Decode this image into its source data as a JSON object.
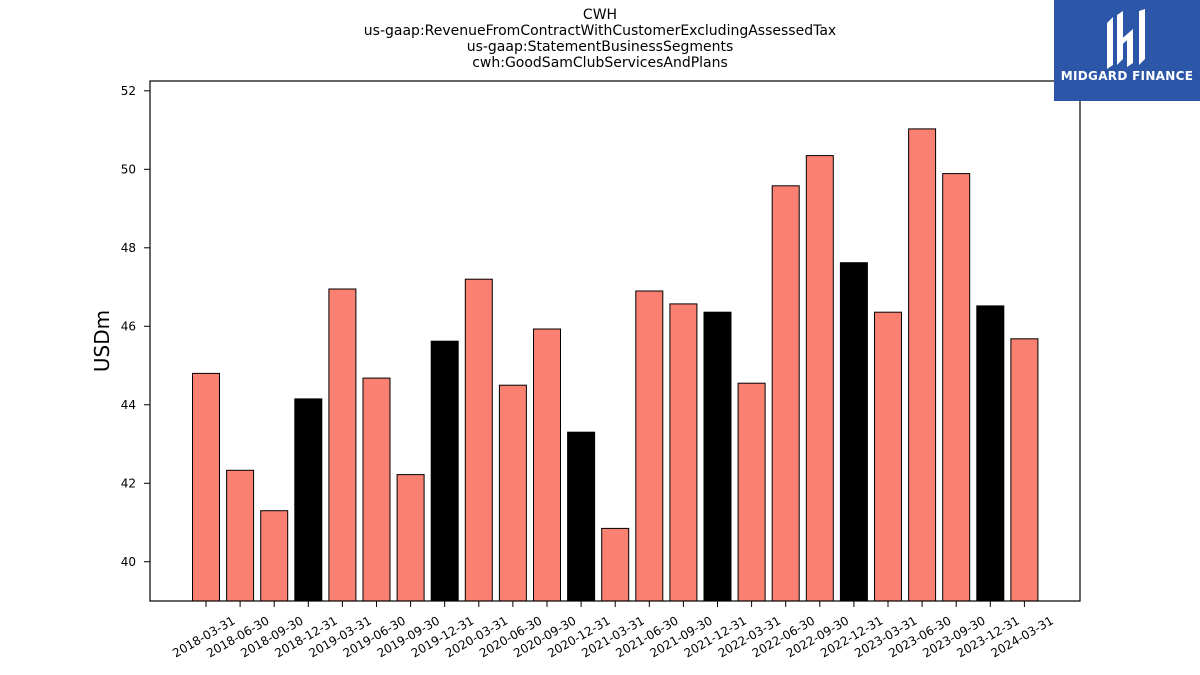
{
  "title_lines": [
    "CWH",
    "us-gaap:RevenueFromContractWithCustomerExcludingAssessedTax",
    "us-gaap:StatementBusinessSegments",
    "cwh:GoodSamClubServicesAndPlans"
  ],
  "logo": {
    "text": "MIDGARD FINANCE",
    "icon": "midgard-logo-icon",
    "bg": "#2c56a8"
  },
  "chart_data": {
    "type": "bar",
    "title": "CWH us-gaap:RevenueFromContractWithCustomerExcludingAssessedTax us-gaap:StatementBusinessSegments cwh:GoodSamClubServicesAndPlans",
    "xlabel": "",
    "ylabel": "USDm",
    "ylim": [
      39,
      52.25
    ],
    "yticks": [
      40,
      42,
      44,
      46,
      48,
      50,
      52
    ],
    "grid": false,
    "colors": {
      "default": "#fa8072",
      "highlight": "#000000",
      "edge": "#000000"
    },
    "categories": [
      "2018-03-31",
      "2018-06-30",
      "2018-09-30",
      "2018-12-31",
      "2019-03-31",
      "2019-06-30",
      "2019-09-30",
      "2019-12-31",
      "2020-03-31",
      "2020-06-30",
      "2020-09-30",
      "2020-12-31",
      "2021-03-31",
      "2021-06-30",
      "2021-09-30",
      "2021-12-31",
      "2022-03-31",
      "2022-06-30",
      "2022-09-30",
      "2022-12-31",
      "2023-03-31",
      "2023-06-30",
      "2023-09-30",
      "2023-12-31",
      "2024-03-31"
    ],
    "values": [
      44.8,
      42.33,
      41.3,
      44.15,
      46.95,
      44.68,
      42.22,
      45.62,
      47.2,
      44.5,
      45.93,
      43.3,
      40.85,
      46.9,
      46.57,
      46.36,
      44.55,
      49.58,
      50.35,
      47.62,
      46.36,
      51.03,
      49.89,
      46.52,
      45.68
    ],
    "highlight": [
      false,
      false,
      false,
      true,
      false,
      false,
      false,
      true,
      false,
      false,
      false,
      true,
      false,
      false,
      false,
      true,
      false,
      false,
      false,
      true,
      false,
      false,
      false,
      true,
      false
    ]
  }
}
